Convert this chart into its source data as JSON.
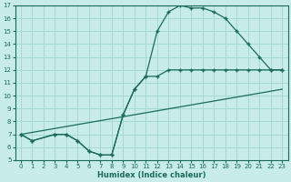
{
  "xlabel": "Humidex (Indice chaleur)",
  "ylabel": "",
  "bg_color": "#c8ece9",
  "grid_color": "#a8d8d2",
  "line_color": "#1a6b5a",
  "xlim": [
    -0.5,
    23.5
  ],
  "ylim": [
    5,
    17
  ],
  "xticks": [
    0,
    1,
    2,
    3,
    4,
    5,
    6,
    7,
    8,
    9,
    10,
    11,
    12,
    13,
    14,
    15,
    16,
    17,
    18,
    19,
    20,
    21,
    22,
    23
  ],
  "yticks": [
    5,
    6,
    7,
    8,
    9,
    10,
    11,
    12,
    13,
    14,
    15,
    16,
    17
  ],
  "line1_x": [
    0,
    1,
    3,
    4,
    5,
    6,
    7,
    8,
    9,
    10,
    11,
    12,
    13,
    14,
    15,
    16,
    17,
    18,
    19,
    20,
    21,
    22,
    23
  ],
  "line1_y": [
    7,
    6.5,
    7,
    7,
    6.5,
    5.7,
    5.4,
    5.4,
    8.5,
    10.5,
    11.5,
    11.5,
    12,
    12,
    12,
    12,
    12,
    12,
    12,
    12,
    12,
    12,
    12
  ],
  "line2_x": [
    0,
    1,
    3,
    4,
    5,
    6,
    7,
    8,
    9,
    10,
    11,
    12,
    13,
    14,
    15,
    16,
    17,
    18,
    19,
    20,
    21,
    22,
    23
  ],
  "line2_y": [
    7,
    6.5,
    7,
    7,
    6.5,
    5.7,
    5.4,
    5.4,
    8.5,
    10.5,
    11.5,
    15,
    16.5,
    17,
    16.8,
    16.8,
    16.5,
    16,
    15,
    14,
    13,
    12,
    12
  ],
  "line3_x": [
    0,
    23
  ],
  "line3_y": [
    7,
    10.5
  ]
}
